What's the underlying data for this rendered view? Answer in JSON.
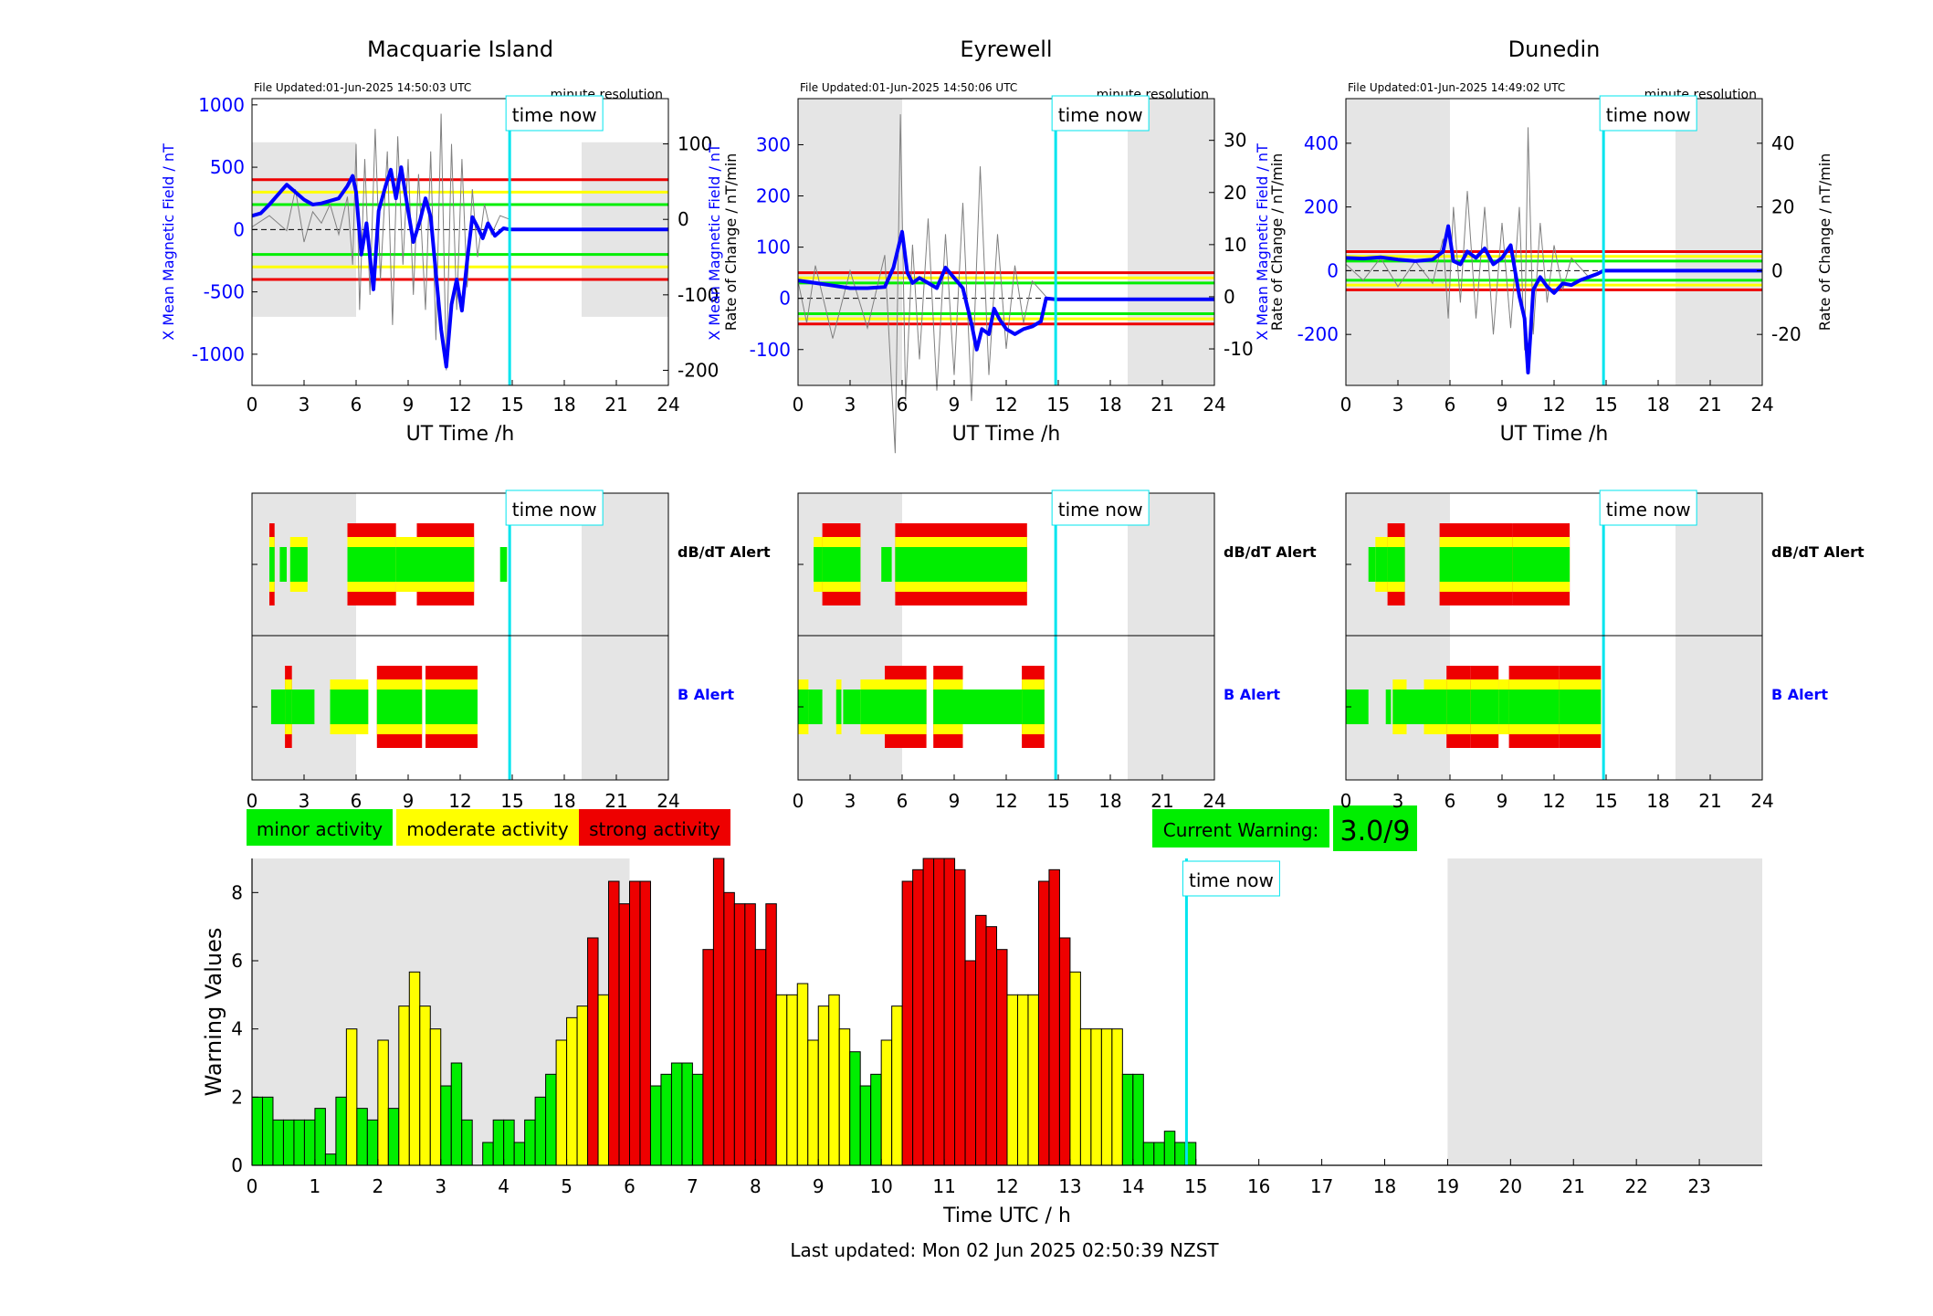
{
  "page": {
    "footer": "Last updated: Mon 02 Jun 2025 02:50:39 NZST"
  },
  "labels": {
    "time_now": "time now",
    "ut_time": "UT Time /h",
    "dbdt_alert": "dB/dT Alert",
    "b_alert": "B Alert",
    "minute_resolution": "minute resolution",
    "left_axis": "X Mean Magnetic Field / nT",
    "right_axis": "Rate of Change / nT/min"
  },
  "legend": {
    "minor": "minor activity",
    "moderate": "moderate activity",
    "strong": "strong activity",
    "current_warning_label": "Current Warning:",
    "current_warning_value": "3.0/9"
  },
  "colors": {
    "field": "#0000ff",
    "rate": "#808080",
    "minor": "#00ee00",
    "moderate": "#ffff00",
    "strong": "#ee0000",
    "now": "#00e5ee",
    "shade": "#e5e5e5"
  },
  "chart_data": [
    {
      "type": "line",
      "title": "Macquarie Island",
      "file_updated": "File Updated:01-Jun-2025 14:50:03 UTC",
      "xlabel": "UT Time /h",
      "xlim": [
        0,
        24
      ],
      "xticks": [
        0,
        3,
        6,
        9,
        12,
        15,
        18,
        21,
        24
      ],
      "ylabel": "X Mean Magnetic Field / nT",
      "ylim": [
        -1250,
        1050
      ],
      "yticks": [
        -1000,
        -500,
        0,
        500,
        1000
      ],
      "y2label": "Rate of Change / nT/min",
      "y2lim": [
        -220,
        160
      ],
      "y2ticks": [
        -200,
        -100,
        0,
        100
      ],
      "thresholds": {
        "minor": 200,
        "moderate": 300,
        "strong": 400
      },
      "shaded": [
        [
          0,
          6
        ],
        [
          19,
          24
        ]
      ],
      "now": 14.85,
      "field_series": [
        [
          0,
          110
        ],
        [
          0.5,
          130
        ],
        [
          1,
          200
        ],
        [
          1.5,
          280
        ],
        [
          2,
          360
        ],
        [
          2.5,
          300
        ],
        [
          3,
          240
        ],
        [
          3.5,
          200
        ],
        [
          4,
          210
        ],
        [
          4.5,
          230
        ],
        [
          5,
          250
        ],
        [
          5.5,
          350
        ],
        [
          5.8,
          430
        ],
        [
          6,
          300
        ],
        [
          6.3,
          -200
        ],
        [
          6.6,
          50
        ],
        [
          7,
          -480
        ],
        [
          7.3,
          150
        ],
        [
          7.7,
          350
        ],
        [
          8,
          480
        ],
        [
          8.3,
          250
        ],
        [
          8.6,
          500
        ],
        [
          9,
          150
        ],
        [
          9.3,
          -100
        ],
        [
          9.7,
          80
        ],
        [
          10,
          250
        ],
        [
          10.3,
          100
        ],
        [
          10.6,
          -350
        ],
        [
          10.9,
          -800
        ],
        [
          11.2,
          -1100
        ],
        [
          11.5,
          -600
        ],
        [
          11.8,
          -400
        ],
        [
          12.1,
          -650
        ],
        [
          12.4,
          -250
        ],
        [
          12.7,
          100
        ],
        [
          13,
          20
        ],
        [
          13.3,
          -70
        ],
        [
          13.6,
          50
        ],
        [
          14,
          -50
        ],
        [
          14.5,
          10
        ],
        [
          14.85,
          0
        ],
        [
          24,
          0
        ]
      ],
      "rate_series": [
        [
          0,
          -10
        ],
        [
          1,
          5
        ],
        [
          2,
          -15
        ],
        [
          2.5,
          40
        ],
        [
          3,
          -30
        ],
        [
          3.5,
          10
        ],
        [
          4,
          -5
        ],
        [
          4.5,
          20
        ],
        [
          5,
          -20
        ],
        [
          5.5,
          30
        ],
        [
          5.8,
          -60
        ],
        [
          6,
          100
        ],
        [
          6.2,
          -120
        ],
        [
          6.5,
          80
        ],
        [
          6.8,
          -100
        ],
        [
          7.1,
          120
        ],
        [
          7.4,
          -80
        ],
        [
          7.8,
          90
        ],
        [
          8.1,
          -140
        ],
        [
          8.4,
          110
        ],
        [
          8.7,
          -60
        ],
        [
          9,
          80
        ],
        [
          9.3,
          -100
        ],
        [
          9.6,
          60
        ],
        [
          10,
          -120
        ],
        [
          10.3,
          90
        ],
        [
          10.6,
          -160
        ],
        [
          10.9,
          140
        ],
        [
          11.2,
          -200
        ],
        [
          11.5,
          100
        ],
        [
          11.8,
          -120
        ],
        [
          12.1,
          80
        ],
        [
          12.4,
          -90
        ],
        [
          12.7,
          40
        ],
        [
          13,
          -50
        ],
        [
          13.4,
          20
        ],
        [
          13.8,
          -20
        ],
        [
          14.3,
          5
        ],
        [
          14.85,
          0
        ]
      ]
    },
    {
      "type": "line",
      "title": "Eyrewell",
      "file_updated": "File Updated:01-Jun-2025 14:50:06 UTC",
      "xlabel": "UT Time /h",
      "xlim": [
        0,
        24
      ],
      "xticks": [
        0,
        3,
        6,
        9,
        12,
        15,
        18,
        21,
        24
      ],
      "ylabel": "X Mean Magnetic Field / nT",
      "ylim": [
        -170,
        390
      ],
      "yticks": [
        -100,
        0,
        100,
        200,
        300
      ],
      "y2label": "Rate of Change / nT/min",
      "y2lim": [
        -17,
        38
      ],
      "y2ticks": [
        -10,
        0,
        10,
        20,
        30
      ],
      "thresholds": {
        "minor": 30,
        "moderate": 40,
        "strong": 50
      },
      "shaded": [
        [
          0,
          6
        ],
        [
          19,
          24
        ]
      ],
      "now": 14.85,
      "field_series": [
        [
          0,
          35
        ],
        [
          1,
          30
        ],
        [
          2,
          25
        ],
        [
          3,
          20
        ],
        [
          4,
          20
        ],
        [
          5,
          22
        ],
        [
          5.5,
          60
        ],
        [
          6,
          130
        ],
        [
          6.3,
          50
        ],
        [
          6.6,
          30
        ],
        [
          7,
          40
        ],
        [
          7.5,
          30
        ],
        [
          8,
          20
        ],
        [
          8.5,
          60
        ],
        [
          9,
          40
        ],
        [
          9.5,
          20
        ],
        [
          10,
          -50
        ],
        [
          10.3,
          -100
        ],
        [
          10.6,
          -60
        ],
        [
          11,
          -70
        ],
        [
          11.3,
          -20
        ],
        [
          11.6,
          -40
        ],
        [
          12,
          -60
        ],
        [
          12.5,
          -70
        ],
        [
          13,
          -60
        ],
        [
          13.5,
          -55
        ],
        [
          14,
          -45
        ],
        [
          14.3,
          0
        ],
        [
          14.85,
          -2
        ],
        [
          24,
          -2
        ]
      ],
      "rate_series": [
        [
          0,
          3
        ],
        [
          0.5,
          -5
        ],
        [
          1,
          6
        ],
        [
          2,
          -8
        ],
        [
          3,
          5
        ],
        [
          4,
          -6
        ],
        [
          5,
          8
        ],
        [
          5.6,
          -30
        ],
        [
          5.9,
          35
        ],
        [
          6.2,
          -20
        ],
        [
          6.6,
          10
        ],
        [
          7,
          -12
        ],
        [
          7.5,
          15
        ],
        [
          8,
          -18
        ],
        [
          8.5,
          12
        ],
        [
          9,
          -15
        ],
        [
          9.5,
          18
        ],
        [
          10,
          -20
        ],
        [
          10.5,
          25
        ],
        [
          11,
          -15
        ],
        [
          11.5,
          12
        ],
        [
          12,
          -10
        ],
        [
          12.5,
          6
        ],
        [
          13,
          -5
        ],
        [
          13.5,
          3
        ],
        [
          14.3,
          0
        ]
      ]
    },
    {
      "type": "line",
      "title": "Dunedin",
      "file_updated": "File Updated:01-Jun-2025 14:49:02 UTC",
      "xlabel": "UT Time /h",
      "xlim": [
        0,
        24
      ],
      "xticks": [
        0,
        3,
        6,
        9,
        12,
        15,
        18,
        21,
        24
      ],
      "ylabel": "X Mean Magnetic Field / nT",
      "ylim": [
        -360,
        540
      ],
      "yticks": [
        -200,
        0,
        200,
        400
      ],
      "y2label": "Rate of Change / nT/min",
      "y2lim": [
        -36,
        54
      ],
      "y2ticks": [
        -20,
        0,
        20,
        40
      ],
      "thresholds": {
        "minor": 30,
        "moderate": 45,
        "strong": 60
      },
      "shaded": [
        [
          0,
          6
        ],
        [
          19,
          24
        ]
      ],
      "now": 14.85,
      "field_series": [
        [
          0,
          40
        ],
        [
          1,
          38
        ],
        [
          2,
          42
        ],
        [
          3,
          35
        ],
        [
          4,
          30
        ],
        [
          5,
          35
        ],
        [
          5.6,
          60
        ],
        [
          5.9,
          140
        ],
        [
          6.2,
          30
        ],
        [
          6.6,
          20
        ],
        [
          7,
          60
        ],
        [
          7.5,
          40
        ],
        [
          8,
          70
        ],
        [
          8.5,
          20
        ],
        [
          9,
          40
        ],
        [
          9.5,
          80
        ],
        [
          10,
          -80
        ],
        [
          10.3,
          -150
        ],
        [
          10.5,
          -320
        ],
        [
          10.8,
          -60
        ],
        [
          11.2,
          -20
        ],
        [
          11.6,
          -50
        ],
        [
          12,
          -70
        ],
        [
          12.5,
          -40
        ],
        [
          13,
          -45
        ],
        [
          13.5,
          -30
        ],
        [
          14,
          -20
        ],
        [
          14.5,
          -10
        ],
        [
          14.85,
          0
        ],
        [
          24,
          0
        ]
      ],
      "rate_series": [
        [
          0,
          2
        ],
        [
          1,
          -3
        ],
        [
          2,
          4
        ],
        [
          3,
          -5
        ],
        [
          4,
          3
        ],
        [
          5,
          -4
        ],
        [
          5.6,
          10
        ],
        [
          5.9,
          -15
        ],
        [
          6.2,
          20
        ],
        [
          6.6,
          -10
        ],
        [
          7,
          25
        ],
        [
          7.5,
          -15
        ],
        [
          8,
          20
        ],
        [
          8.5,
          -20
        ],
        [
          9,
          15
        ],
        [
          9.5,
          -18
        ],
        [
          10,
          20
        ],
        [
          10.3,
          -25
        ],
        [
          10.5,
          45
        ],
        [
          10.8,
          -20
        ],
        [
          11.2,
          15
        ],
        [
          11.6,
          -10
        ],
        [
          12,
          8
        ],
        [
          12.5,
          -6
        ],
        [
          13,
          4
        ],
        [
          14,
          -2
        ],
        [
          14.85,
          0
        ]
      ]
    },
    {
      "type": "bar",
      "xlabel": "Time UTC / h",
      "ylabel": "Warning Values",
      "xlim": [
        0,
        24
      ],
      "ylim": [
        0,
        9
      ],
      "xticks": [
        0,
        1,
        2,
        3,
        4,
        5,
        6,
        7,
        8,
        9,
        10,
        11,
        12,
        13,
        14,
        15,
        16,
        17,
        18,
        19,
        20,
        21,
        22,
        23
      ],
      "yticks": [
        0,
        2,
        4,
        6,
        8
      ],
      "bin_hours": 0.1667,
      "shaded": [
        [
          0,
          6
        ],
        [
          19,
          24
        ]
      ],
      "now": 14.85,
      "values": [
        2,
        2,
        1.33,
        1.33,
        1.33,
        1.33,
        1.67,
        0.33,
        2,
        4,
        1.67,
        1.33,
        3.67,
        1.67,
        4.67,
        5.67,
        4.67,
        4,
        2.33,
        3,
        1.33,
        0,
        0.67,
        1.33,
        1.33,
        0.67,
        1.33,
        2,
        2.67,
        3.67,
        4.33,
        4.67,
        6.67,
        5,
        8.33,
        7.67,
        8.33,
        8.33,
        2.33,
        2.67,
        3,
        3,
        2.67,
        6.33,
        9,
        8,
        7.67,
        7.67,
        6.33,
        7.67,
        5,
        5,
        5.33,
        3.67,
        4.67,
        5,
        4,
        3.33,
        2.33,
        2.67,
        3.67,
        4.67,
        8.33,
        8.67,
        9,
        9,
        9,
        8.67,
        6,
        7.33,
        7,
        6.33,
        5,
        5,
        5,
        8.33,
        8.67,
        6.67,
        5.67,
        4,
        4,
        4,
        4,
        2.67,
        2.67,
        0.67,
        0.67,
        1,
        0.67,
        0.67
      ]
    }
  ],
  "alerts": [
    {
      "station": "Macquarie Island",
      "dbdt": [
        [
          1,
          1.3,
          3
        ],
        [
          1.6,
          2,
          1
        ],
        [
          2.2,
          3.2,
          2
        ],
        [
          5.5,
          8.3,
          3
        ],
        [
          8.3,
          9.5,
          2
        ],
        [
          9.5,
          12.8,
          3
        ],
        [
          14.3,
          14.7,
          1
        ]
      ],
      "b": [
        [
          1.1,
          1.9,
          1
        ],
        [
          1.9,
          2.3,
          3
        ],
        [
          2.3,
          3.6,
          1
        ],
        [
          4.5,
          6.7,
          2
        ],
        [
          7.2,
          9.8,
          3
        ],
        [
          10,
          13,
          3
        ]
      ]
    },
    {
      "station": "Eyrewell",
      "dbdt": [
        [
          0.9,
          1.4,
          2
        ],
        [
          1.4,
          3.6,
          3
        ],
        [
          4.8,
          5.4,
          1
        ],
        [
          5.6,
          13.2,
          3
        ]
      ],
      "b": [
        [
          0,
          0.6,
          2
        ],
        [
          0.6,
          1.4,
          1
        ],
        [
          2.2,
          2.5,
          2
        ],
        [
          2.6,
          3.6,
          1
        ],
        [
          3.6,
          5,
          2
        ],
        [
          5,
          7.4,
          3
        ],
        [
          7.8,
          9.5,
          3
        ],
        [
          9.5,
          12.9,
          1
        ],
        [
          12.9,
          14.2,
          3
        ]
      ]
    },
    {
      "station": "Dunedin",
      "dbdt": [
        [
          1.3,
          1.7,
          1
        ],
        [
          1.7,
          2.4,
          2
        ],
        [
          2.4,
          3.4,
          3
        ],
        [
          5.4,
          9.6,
          3
        ],
        [
          9.6,
          12.9,
          3
        ]
      ],
      "b": [
        [
          0,
          1.3,
          1
        ],
        [
          2.3,
          2.6,
          1
        ],
        [
          2.7,
          3.5,
          2
        ],
        [
          3.5,
          4.5,
          1
        ],
        [
          4.5,
          5.8,
          2
        ],
        [
          5.8,
          7.2,
          3
        ],
        [
          7.2,
          8.8,
          3
        ],
        [
          8.8,
          9.4,
          2
        ],
        [
          9.4,
          10.5,
          3
        ],
        [
          10.5,
          12.3,
          3
        ],
        [
          12.3,
          14.7,
          3
        ]
      ]
    }
  ]
}
